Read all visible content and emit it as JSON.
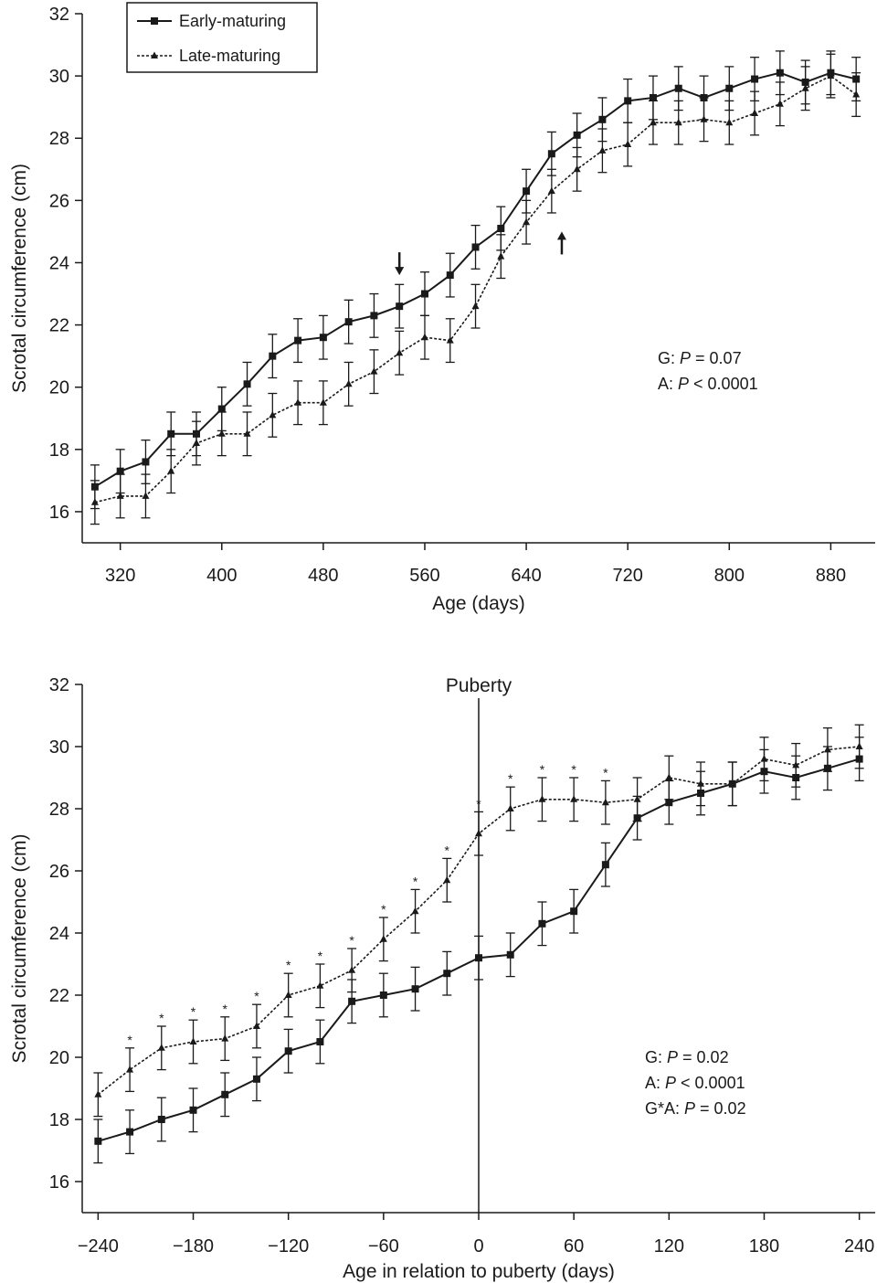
{
  "chart_data": [
    {
      "type": "line",
      "xlabel": "Age (days)",
      "ylabel": "Scrotal circumference (cm)",
      "xlim": [
        290,
        915
      ],
      "ylim": [
        15,
        32
      ],
      "xticks": [
        320,
        400,
        480,
        560,
        640,
        720,
        800,
        880
      ],
      "yticks": [
        16,
        18,
        20,
        22,
        24,
        26,
        28,
        30,
        32
      ],
      "legend": {
        "placement": "top-left",
        "entries": [
          "Early-maturing",
          "Late-maturing"
        ]
      },
      "annotations": [
        {
          "text": "G: ",
          "italic": "P",
          "rest": " = 0.07"
        },
        {
          "text": "A: ",
          "italic": "P",
          "rest": " < 0.0001"
        }
      ],
      "arrows": [
        {
          "x": 540,
          "y": 23.6,
          "direction": "down"
        },
        {
          "x": 668,
          "y": 25.0,
          "direction": "up"
        }
      ],
      "x": [
        300,
        320,
        340,
        360,
        380,
        400,
        420,
        440,
        460,
        480,
        500,
        520,
        540,
        560,
        580,
        600,
        620,
        640,
        660,
        680,
        700,
        720,
        740,
        760,
        780,
        800,
        820,
        840,
        860,
        880,
        900
      ],
      "series": [
        {
          "name": "Early-maturing",
          "marker": "square",
          "style": "solid",
          "values": [
            16.8,
            17.3,
            17.6,
            18.5,
            18.5,
            19.3,
            20.1,
            21.0,
            21.5,
            21.6,
            22.1,
            22.3,
            22.6,
            23.0,
            23.6,
            24.5,
            25.1,
            26.3,
            27.5,
            28.1,
            28.6,
            29.2,
            29.3,
            29.6,
            29.3,
            29.6,
            29.9,
            30.1,
            29.8,
            30.1,
            29.9
          ],
          "errors": [
            0.7,
            0.7,
            0.7,
            0.7,
            0.7,
            0.7,
            0.7,
            0.7,
            0.7,
            0.7,
            0.7,
            0.7,
            0.7,
            0.7,
            0.7,
            0.7,
            0.7,
            0.7,
            0.7,
            0.7,
            0.7,
            0.7,
            0.7,
            0.7,
            0.7,
            0.7,
            0.7,
            0.7,
            0.7,
            0.7,
            0.7
          ]
        },
        {
          "name": "Late-maturing",
          "marker": "triangle",
          "style": "dotted",
          "values": [
            16.3,
            16.5,
            16.5,
            17.3,
            18.2,
            18.5,
            18.5,
            19.1,
            19.5,
            19.5,
            20.1,
            20.5,
            21.1,
            21.6,
            21.5,
            22.6,
            24.2,
            25.3,
            26.3,
            27.0,
            27.6,
            27.8,
            28.5,
            28.5,
            28.6,
            28.5,
            28.8,
            29.1,
            29.6,
            30.0,
            29.4
          ],
          "errors": [
            0.7,
            0.7,
            0.7,
            0.7,
            0.7,
            0.7,
            0.7,
            0.7,
            0.7,
            0.7,
            0.7,
            0.7,
            0.7,
            0.7,
            0.7,
            0.7,
            0.7,
            0.7,
            0.7,
            0.7,
            0.7,
            0.7,
            0.7,
            0.7,
            0.7,
            0.7,
            0.7,
            0.7,
            0.7,
            0.7,
            0.7
          ]
        }
      ]
    },
    {
      "type": "line",
      "xlabel": "Age in relation to puberty (days)",
      "ylabel": "Scrotal circumference (cm)",
      "xlim": [
        -250,
        250
      ],
      "ylim": [
        15,
        32
      ],
      "xticks": [
        -240,
        -180,
        -120,
        -60,
        0,
        60,
        120,
        180,
        240
      ],
      "xtick_labels": [
        "−240",
        "−180",
        "−120",
        "−60",
        "0",
        "60",
        "120",
        "180",
        "240"
      ],
      "yticks": [
        16,
        18,
        20,
        22,
        24,
        26,
        28,
        30,
        32
      ],
      "vline": {
        "x": 0,
        "label": "Puberty"
      },
      "annotations": [
        {
          "text": "G: ",
          "italic": "P",
          "rest": " = 0.02"
        },
        {
          "text": "A: ",
          "italic": "P",
          "rest": " < 0.0001"
        },
        {
          "text": "G*A: ",
          "italic": "P",
          "rest": " = 0.02"
        }
      ],
      "significance_marker": "*",
      "significant_x": [
        -220,
        -200,
        -180,
        -160,
        -140,
        -120,
        -100,
        -80,
        -60,
        -40,
        -20,
        0,
        20,
        40,
        60,
        80
      ],
      "x": [
        -240,
        -220,
        -200,
        -180,
        -160,
        -140,
        -120,
        -100,
        -80,
        -60,
        -40,
        -20,
        0,
        20,
        40,
        60,
        80,
        100,
        120,
        140,
        160,
        180,
        200,
        220,
        240
      ],
      "series": [
        {
          "name": "Early-maturing",
          "marker": "square",
          "style": "solid",
          "values": [
            17.3,
            17.6,
            18.0,
            18.3,
            18.8,
            19.3,
            20.2,
            20.5,
            21.8,
            22.0,
            22.2,
            22.7,
            23.2,
            23.3,
            24.3,
            24.7,
            26.2,
            27.7,
            28.2,
            28.5,
            28.8,
            29.2,
            29.0,
            29.3,
            29.6
          ],
          "errors": [
            0.7,
            0.7,
            0.7,
            0.7,
            0.7,
            0.7,
            0.7,
            0.7,
            0.7,
            0.7,
            0.7,
            0.7,
            0.7,
            0.7,
            0.7,
            0.7,
            0.7,
            0.7,
            0.7,
            0.7,
            0.7,
            0.7,
            0.7,
            0.7,
            0.7
          ]
        },
        {
          "name": "Late-maturing",
          "marker": "triangle",
          "style": "dotted",
          "values": [
            18.8,
            19.6,
            20.3,
            20.5,
            20.6,
            21.0,
            22.0,
            22.3,
            22.8,
            23.8,
            24.7,
            25.7,
            27.2,
            28.0,
            28.3,
            28.3,
            28.2,
            28.3,
            29.0,
            28.8,
            28.8,
            29.6,
            29.4,
            29.9,
            30.0
          ],
          "errors": [
            0.7,
            0.7,
            0.7,
            0.7,
            0.7,
            0.7,
            0.7,
            0.7,
            0.7,
            0.7,
            0.7,
            0.7,
            0.7,
            0.7,
            0.7,
            0.7,
            0.7,
            0.7,
            0.7,
            0.7,
            0.7,
            0.7,
            0.7,
            0.7,
            0.7
          ]
        }
      ]
    }
  ]
}
